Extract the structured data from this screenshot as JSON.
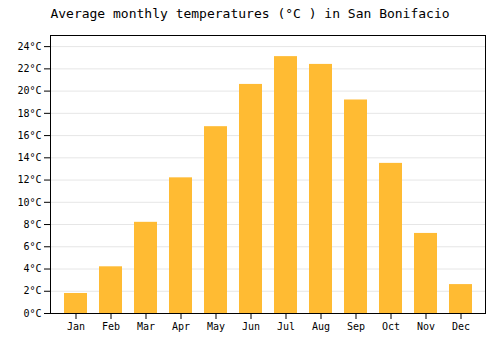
{
  "chart_data": {
    "type": "bar",
    "title": "Average monthly temperatures (°C ) in San Bonifacio",
    "categories": [
      "Jan",
      "Feb",
      "Mar",
      "Apr",
      "May",
      "Jun",
      "Jul",
      "Aug",
      "Sep",
      "Oct",
      "Nov",
      "Dec"
    ],
    "values": [
      1.8,
      4.2,
      8.2,
      12.2,
      16.8,
      20.6,
      23.1,
      22.4,
      19.2,
      13.5,
      7.2,
      2.6
    ],
    "color": "#FFBB33",
    "ylim": [
      0,
      25
    ],
    "yticks": [
      {
        "value": 0,
        "label": "0°C"
      },
      {
        "value": 2,
        "label": "2°C"
      },
      {
        "value": 4,
        "label": "4°C"
      },
      {
        "value": 6,
        "label": "6°C"
      },
      {
        "value": 8,
        "label": "8°C"
      },
      {
        "value": 10,
        "label": "10°C"
      },
      {
        "value": 12,
        "label": "12°C"
      },
      {
        "value": 14,
        "label": "14°C"
      },
      {
        "value": 16,
        "label": "16°C"
      },
      {
        "value": 18,
        "label": "18°C"
      },
      {
        "value": 20,
        "label": "20°C"
      },
      {
        "value": 22,
        "label": "22°C"
      },
      {
        "value": 24,
        "label": "24°C"
      }
    ],
    "grid": true
  }
}
